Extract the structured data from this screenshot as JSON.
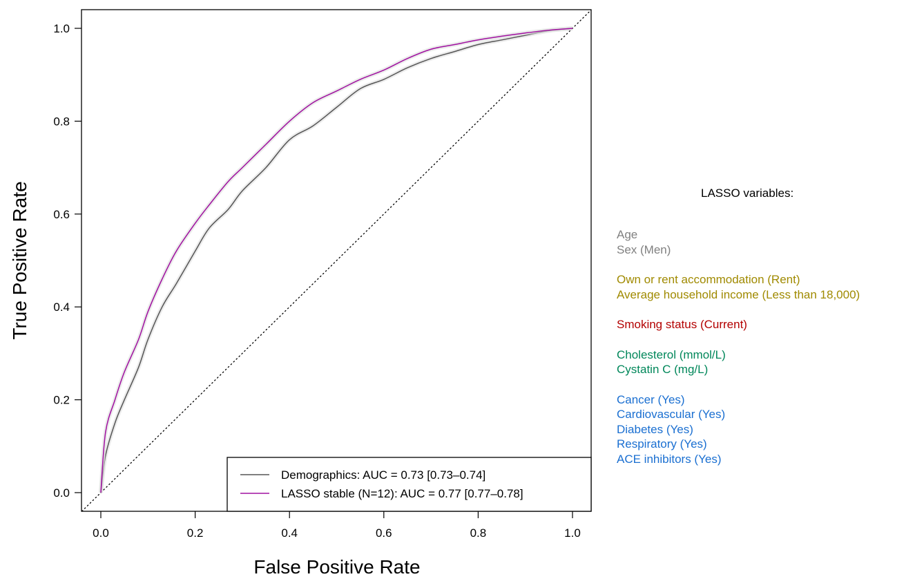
{
  "chart_data": {
    "type": "line",
    "xlabel": "False Positive Rate",
    "ylabel": "True Positive Rate",
    "xlim": [
      0,
      1
    ],
    "ylim": [
      0,
      1
    ],
    "x_ticks": [
      "0.0",
      "0.2",
      "0.4",
      "0.6",
      "0.8",
      "1.0"
    ],
    "y_ticks": [
      "0.0",
      "0.2",
      "0.4",
      "0.6",
      "0.8",
      "1.0"
    ],
    "grid": false,
    "legend_position": "bottom-right",
    "reference_line": "diagonal (dotted)",
    "series": [
      {
        "name": "Demographics: AUC = 0.73 [0.73–0.74]",
        "color": "#555555",
        "x": [
          0,
          0.01,
          0.03,
          0.05,
          0.08,
          0.1,
          0.13,
          0.16,
          0.2,
          0.23,
          0.27,
          0.3,
          0.35,
          0.4,
          0.45,
          0.5,
          0.55,
          0.6,
          0.65,
          0.7,
          0.75,
          0.8,
          0.85,
          0.9,
          0.95,
          1.0
        ],
        "y": [
          0,
          0.08,
          0.15,
          0.2,
          0.27,
          0.33,
          0.4,
          0.45,
          0.52,
          0.57,
          0.61,
          0.65,
          0.7,
          0.76,
          0.79,
          0.83,
          0.87,
          0.89,
          0.915,
          0.935,
          0.95,
          0.965,
          0.975,
          0.985,
          0.995,
          1.0
        ]
      },
      {
        "name": "LASSO stable (N=12): AUC = 0.77 [0.77–0.78]",
        "color": "#a010a0",
        "x": [
          0,
          0.01,
          0.03,
          0.05,
          0.08,
          0.1,
          0.13,
          0.16,
          0.2,
          0.23,
          0.27,
          0.3,
          0.35,
          0.4,
          0.45,
          0.5,
          0.55,
          0.6,
          0.65,
          0.7,
          0.75,
          0.8,
          0.85,
          0.9,
          0.95,
          1.0
        ],
        "y": [
          0,
          0.13,
          0.2,
          0.26,
          0.33,
          0.39,
          0.46,
          0.52,
          0.58,
          0.62,
          0.67,
          0.7,
          0.75,
          0.8,
          0.84,
          0.865,
          0.89,
          0.91,
          0.935,
          0.955,
          0.965,
          0.975,
          0.983,
          0.99,
          0.996,
          1.0
        ]
      }
    ]
  },
  "lasso_panel": {
    "title": "LASSO variables:",
    "groups": [
      {
        "color": "#808080",
        "items": [
          "Age",
          "Sex (Men)"
        ]
      },
      {
        "color": "#a08a00",
        "items": [
          "Own or rent accommodation (Rent)",
          "Average household income (Less than 18,000)"
        ]
      },
      {
        "color": "#b30000",
        "items": [
          "Smoking status (Current)"
        ]
      },
      {
        "color": "#00875a",
        "items": [
          "Cholesterol (mmol/L)",
          "Cystatin C (mg/L)"
        ]
      },
      {
        "color": "#1a6fd1",
        "items": [
          "Cancer (Yes)",
          "Cardiovascular (Yes)",
          "Diabetes (Yes)",
          "Respiratory (Yes)",
          "ACE inhibitors (Yes)"
        ]
      }
    ]
  }
}
